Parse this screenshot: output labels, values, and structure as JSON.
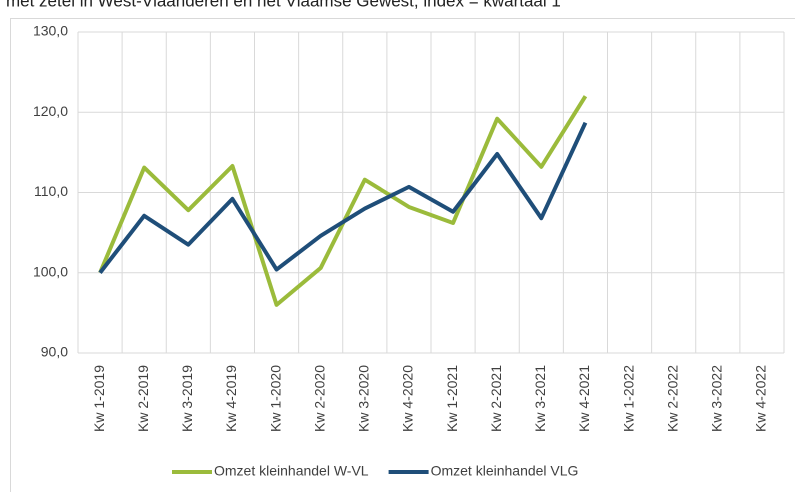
{
  "chart_data": {
    "type": "line",
    "title": "met zetel in West-Vlaanderen en het Vlaamse Gewest, index = kwartaal 1",
    "categories": [
      "Kw 1-2019",
      "Kw 2-2019",
      "Kw 3-2019",
      "Kw 4-2019",
      "Kw 1-2020",
      "Kw 2-2020",
      "Kw 3-2020",
      "Kw 4-2020",
      "Kw 1-2021",
      "Kw 2-2021",
      "Kw 3-2021",
      "Kw 4-2021",
      "Kw 1-2022",
      "Kw 2-2022",
      "Kw 3-2022",
      "Kw 4-2022"
    ],
    "series": [
      {
        "name": "Omzet kleinhandel W-VL",
        "color": "#9bbb3b",
        "values": [
          100,
          113.1,
          107.8,
          113.3,
          96.0,
          100.6,
          111.6,
          108.2,
          106.2,
          119.2,
          113.2,
          122.0,
          null,
          null,
          null,
          null
        ]
      },
      {
        "name": "Omzet kleinhandel VLG",
        "color": "#1f4e79",
        "values": [
          100,
          107.1,
          103.5,
          109.2,
          100.4,
          104.6,
          108.0,
          110.7,
          107.6,
          114.8,
          106.8,
          118.7,
          null,
          null,
          null,
          null
        ]
      }
    ],
    "ylim": [
      90,
      130
    ],
    "yticks": [
      {
        "value": 90,
        "label": "90,0"
      },
      {
        "value": 100,
        "label": "100,0"
      },
      {
        "value": 110,
        "label": "110,0"
      },
      {
        "value": 120,
        "label": "120,0"
      },
      {
        "value": 130,
        "label": "130,0"
      }
    ],
    "grid": true,
    "legend": "bottom"
  }
}
